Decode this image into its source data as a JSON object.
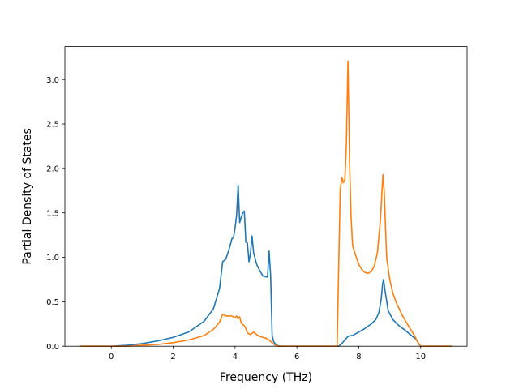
{
  "chart_data": {
    "type": "line",
    "title": "",
    "xlabel": "Frequency (THz)",
    "ylabel": "Partial Density of States",
    "xlim": [
      -1.5,
      11.5
    ],
    "ylim": [
      0.0,
      3.37
    ],
    "xticks": [
      "0",
      "2",
      "4",
      "6",
      "8",
      "10"
    ],
    "yticks": [
      "0.0",
      "0.5",
      "1.0",
      "1.5",
      "2.0",
      "2.5",
      "3.0"
    ],
    "grid": false,
    "legend": "none",
    "series": [
      {
        "color": "#1f77b4",
        "points": [
          [
            -1.0,
            0.0
          ],
          [
            0.0,
            0.0
          ],
          [
            0.5,
            0.01
          ],
          [
            1.0,
            0.03
          ],
          [
            1.5,
            0.06
          ],
          [
            2.0,
            0.1
          ],
          [
            2.5,
            0.16
          ],
          [
            3.0,
            0.28
          ],
          [
            3.3,
            0.42
          ],
          [
            3.5,
            0.65
          ],
          [
            3.6,
            0.95
          ],
          [
            3.7,
            0.98
          ],
          [
            3.8,
            1.08
          ],
          [
            3.9,
            1.21
          ],
          [
            3.95,
            1.22
          ],
          [
            4.0,
            1.33
          ],
          [
            4.05,
            1.47
          ],
          [
            4.1,
            1.81
          ],
          [
            4.15,
            1.39
          ],
          [
            4.2,
            1.45
          ],
          [
            4.25,
            1.5
          ],
          [
            4.3,
            1.52
          ],
          [
            4.35,
            1.17
          ],
          [
            4.4,
            1.16
          ],
          [
            4.45,
            0.95
          ],
          [
            4.5,
            1.05
          ],
          [
            4.55,
            1.24
          ],
          [
            4.6,
            1.05
          ],
          [
            4.7,
            0.92
          ],
          [
            4.8,
            0.85
          ],
          [
            4.9,
            0.79
          ],
          [
            5.0,
            0.78
          ],
          [
            5.05,
            0.78
          ],
          [
            5.1,
            1.07
          ],
          [
            5.15,
            0.8
          ],
          [
            5.2,
            0.12
          ],
          [
            5.25,
            0.05
          ],
          [
            5.35,
            0.01
          ],
          [
            5.45,
            0.0
          ],
          [
            7.35,
            0.0
          ],
          [
            7.45,
            0.03
          ],
          [
            7.55,
            0.07
          ],
          [
            7.65,
            0.11
          ],
          [
            7.75,
            0.12
          ],
          [
            7.8,
            0.12
          ],
          [
            7.9,
            0.14
          ],
          [
            8.0,
            0.16
          ],
          [
            8.2,
            0.2
          ],
          [
            8.4,
            0.25
          ],
          [
            8.55,
            0.3
          ],
          [
            8.65,
            0.38
          ],
          [
            8.72,
            0.52
          ],
          [
            8.77,
            0.7
          ],
          [
            8.8,
            0.75
          ],
          [
            8.85,
            0.62
          ],
          [
            8.95,
            0.4
          ],
          [
            9.1,
            0.3
          ],
          [
            9.3,
            0.23
          ],
          [
            9.5,
            0.18
          ],
          [
            9.7,
            0.12
          ],
          [
            9.85,
            0.08
          ],
          [
            9.95,
            0.02
          ],
          [
            10.0,
            0.0
          ],
          [
            11.0,
            0.0
          ]
        ]
      },
      {
        "color": "#ff7f0e",
        "points": [
          [
            -1.0,
            0.0
          ],
          [
            0.0,
            0.0
          ],
          [
            0.5,
            0.0
          ],
          [
            1.0,
            0.01
          ],
          [
            1.5,
            0.02
          ],
          [
            2.0,
            0.04
          ],
          [
            2.5,
            0.07
          ],
          [
            3.0,
            0.12
          ],
          [
            3.3,
            0.19
          ],
          [
            3.5,
            0.27
          ],
          [
            3.6,
            0.36
          ],
          [
            3.7,
            0.34
          ],
          [
            3.8,
            0.34
          ],
          [
            3.9,
            0.34
          ],
          [
            4.0,
            0.32
          ],
          [
            4.05,
            0.34
          ],
          [
            4.1,
            0.31
          ],
          [
            4.15,
            0.33
          ],
          [
            4.2,
            0.26
          ],
          [
            4.3,
            0.23
          ],
          [
            4.35,
            0.2
          ],
          [
            4.4,
            0.15
          ],
          [
            4.5,
            0.13
          ],
          [
            4.6,
            0.16
          ],
          [
            4.7,
            0.13
          ],
          [
            4.8,
            0.11
          ],
          [
            4.9,
            0.1
          ],
          [
            5.0,
            0.09
          ],
          [
            5.1,
            0.07
          ],
          [
            5.2,
            0.04
          ],
          [
            5.3,
            0.01
          ],
          [
            5.4,
            0.0
          ],
          [
            7.3,
            0.0
          ],
          [
            7.35,
            0.9
          ],
          [
            7.4,
            1.75
          ],
          [
            7.45,
            1.9
          ],
          [
            7.5,
            1.84
          ],
          [
            7.55,
            1.87
          ],
          [
            7.6,
            2.3
          ],
          [
            7.65,
            3.21
          ],
          [
            7.7,
            2.1
          ],
          [
            7.75,
            1.45
          ],
          [
            7.8,
            1.13
          ],
          [
            7.9,
            1.02
          ],
          [
            8.0,
            0.92
          ],
          [
            8.1,
            0.86
          ],
          [
            8.2,
            0.83
          ],
          [
            8.3,
            0.82
          ],
          [
            8.4,
            0.84
          ],
          [
            8.5,
            0.9
          ],
          [
            8.6,
            1.05
          ],
          [
            8.7,
            1.42
          ],
          [
            8.75,
            1.75
          ],
          [
            8.78,
            1.93
          ],
          [
            8.82,
            1.75
          ],
          [
            8.9,
            1.0
          ],
          [
            9.0,
            0.75
          ],
          [
            9.1,
            0.6
          ],
          [
            9.2,
            0.5
          ],
          [
            9.4,
            0.35
          ],
          [
            9.6,
            0.23
          ],
          [
            9.8,
            0.12
          ],
          [
            9.9,
            0.05
          ],
          [
            10.0,
            0.0
          ],
          [
            11.0,
            0.0
          ]
        ]
      }
    ]
  }
}
